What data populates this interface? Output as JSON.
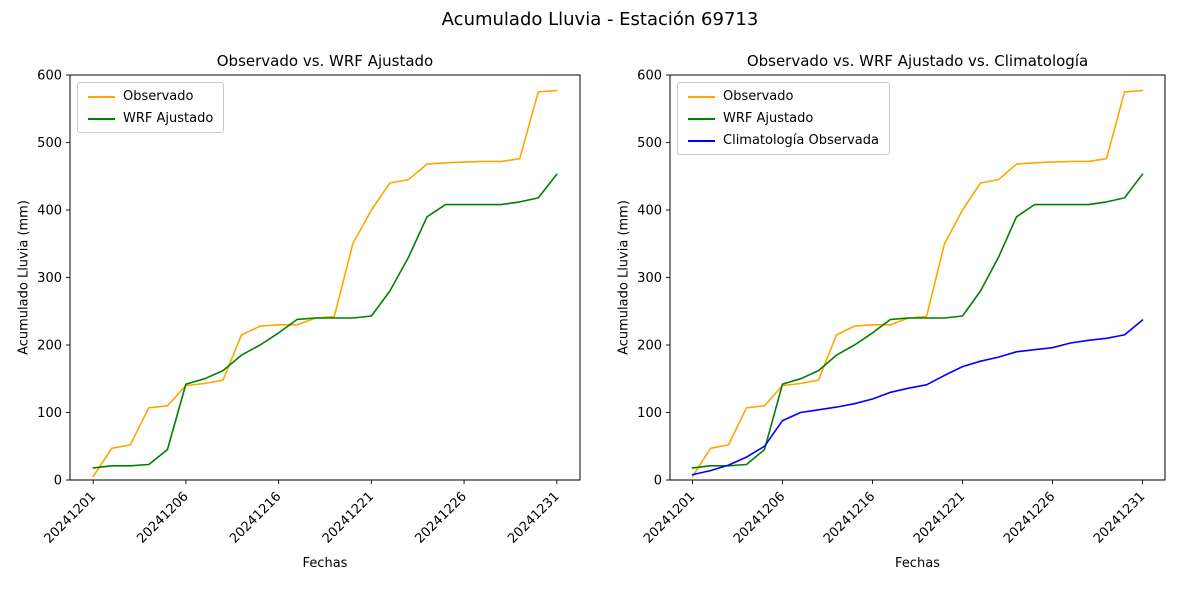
{
  "figure": {
    "title": "Acumulado Lluvia - Estación 69713"
  },
  "chart_data": [
    {
      "type": "line",
      "title": "Observado vs. WRF Ajustado",
      "xlabel": "Fechas",
      "ylabel": "Acumulado Lluvia (mm)",
      "ylim": [
        0,
        600
      ],
      "yticks": [
        0,
        100,
        200,
        300,
        400,
        500,
        600
      ],
      "grid": false,
      "legend_position": "upper left",
      "x": [
        "20241201",
        "20241202",
        "20241203",
        "20241204",
        "20241205",
        "20241206",
        "20241207",
        "20241208",
        "20241209",
        "20241210",
        "20241216",
        "20241217",
        "20241218",
        "20241219",
        "20241220",
        "20241221",
        "20241222",
        "20241223",
        "20241224",
        "20241225",
        "20241226",
        "20241227",
        "20241228",
        "20241229",
        "20241230",
        "20241231"
      ],
      "xticks": [
        "20241201",
        "20241206",
        "20241216",
        "20241221",
        "20241226",
        "20241231"
      ],
      "series": [
        {
          "name": "Observado",
          "color": "#ffa500",
          "values": [
            5,
            47,
            52,
            107,
            110,
            140,
            143,
            148,
            215,
            228,
            230,
            230,
            240,
            242,
            350,
            400,
            440,
            445,
            468,
            470,
            471,
            472,
            472,
            476,
            575,
            577
          ]
        },
        {
          "name": "WRF Ajustado",
          "color": "#008000",
          "values": [
            18,
            21,
            21,
            23,
            45,
            142,
            150,
            162,
            185,
            200,
            218,
            238,
            240,
            240,
            240,
            243,
            280,
            330,
            390,
            408,
            408,
            408,
            408,
            412,
            418,
            453
          ]
        }
      ]
    },
    {
      "type": "line",
      "title": "Observado vs. WRF Ajustado vs. Climatología",
      "xlabel": "Fechas",
      "ylabel": "Acumulado Lluvia (mm)",
      "ylim": [
        0,
        600
      ],
      "yticks": [
        0,
        100,
        200,
        300,
        400,
        500,
        600
      ],
      "grid": false,
      "legend_position": "upper left",
      "x": [
        "20241201",
        "20241202",
        "20241203",
        "20241204",
        "20241205",
        "20241206",
        "20241207",
        "20241208",
        "20241209",
        "20241210",
        "20241216",
        "20241217",
        "20241218",
        "20241219",
        "20241220",
        "20241221",
        "20241222",
        "20241223",
        "20241224",
        "20241225",
        "20241226",
        "20241227",
        "20241228",
        "20241229",
        "20241230",
        "20241231"
      ],
      "xticks": [
        "20241201",
        "20241206",
        "20241216",
        "20241221",
        "20241226",
        "20241231"
      ],
      "series": [
        {
          "name": "Observado",
          "color": "#ffa500",
          "values": [
            5,
            47,
            52,
            107,
            110,
            140,
            143,
            148,
            215,
            228,
            230,
            230,
            240,
            242,
            350,
            400,
            440,
            445,
            468,
            470,
            471,
            472,
            472,
            476,
            575,
            577
          ]
        },
        {
          "name": "WRF Ajustado",
          "color": "#008000",
          "values": [
            18,
            21,
            21,
            23,
            45,
            142,
            150,
            162,
            185,
            200,
            218,
            238,
            240,
            240,
            240,
            243,
            280,
            330,
            390,
            408,
            408,
            408,
            408,
            412,
            418,
            453
          ]
        },
        {
          "name": "Climatología Observada",
          "color": "#0000ff",
          "values": [
            8,
            14,
            22,
            34,
            50,
            88,
            100,
            104,
            108,
            113,
            120,
            130,
            136,
            141,
            155,
            168,
            176,
            182,
            190,
            193,
            196,
            203,
            207,
            210,
            215,
            237
          ]
        }
      ]
    }
  ]
}
